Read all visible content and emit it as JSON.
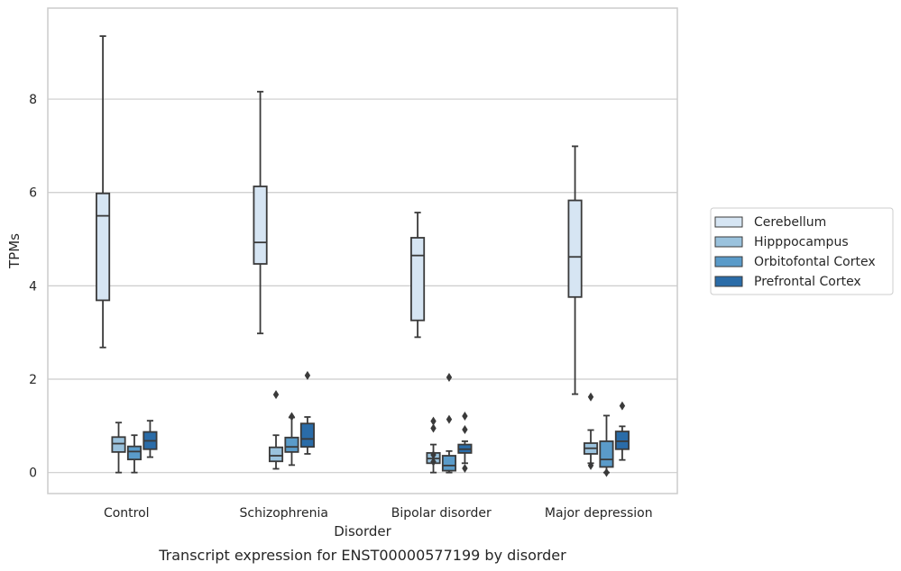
{
  "chart_data": {
    "type": "box",
    "xlabel": "Disorder",
    "ylabel": "TPMs",
    "caption": "Transcript expression for ENST00000577199 by disorder",
    "ylim": [
      -0.45,
      9.95
    ],
    "yticks": [
      0,
      2,
      4,
      6,
      8
    ],
    "grid": "y",
    "legend_position": "right",
    "categories": [
      "Control",
      "Schizophrenia",
      "Bipolar disorder",
      "Major depression"
    ],
    "series": [
      {
        "name": "Cerebellum",
        "color": "#d6e5f3",
        "boxes": [
          {
            "whisker_low": 2.68,
            "q1": 3.69,
            "median": 5.5,
            "q3": 5.98,
            "whisker_high": 9.35,
            "outliers": []
          },
          {
            "whisker_low": 2.98,
            "q1": 4.47,
            "median": 4.93,
            "q3": 6.13,
            "whisker_high": 8.16,
            "outliers": []
          },
          {
            "whisker_low": 2.9,
            "q1": 3.26,
            "median": 4.65,
            "q3": 5.03,
            "whisker_high": 5.57,
            "outliers": []
          },
          {
            "whisker_low": 1.68,
            "q1": 3.76,
            "median": 4.62,
            "q3": 5.83,
            "whisker_high": 6.99,
            "outliers": []
          }
        ]
      },
      {
        "name": "Hipppocampus",
        "color": "#9ac2dd",
        "boxes": [
          {
            "whisker_low": 0.0,
            "q1": 0.44,
            "median": 0.62,
            "q3": 0.76,
            "whisker_high": 1.07,
            "outliers": []
          },
          {
            "whisker_low": 0.08,
            "q1": 0.24,
            "median": 0.36,
            "q3": 0.54,
            "whisker_high": 0.8,
            "outliers": [
              1.67
            ]
          },
          {
            "whisker_low": 0.0,
            "q1": 0.2,
            "median": 0.3,
            "q3": 0.42,
            "whisker_high": 0.6,
            "outliers": [
              0.38,
              0.23,
              1.1,
              0.95
            ]
          },
          {
            "whisker_low": 0.2,
            "q1": 0.4,
            "median": 0.52,
            "q3": 0.63,
            "whisker_high": 0.91,
            "outliers": [
              0.15,
              1.62
            ]
          }
        ]
      },
      {
        "name": "Orbitofontal Cortex",
        "color": "#5a9bc9",
        "boxes": [
          {
            "whisker_low": 0.0,
            "q1": 0.28,
            "median": 0.45,
            "q3": 0.56,
            "whisker_high": 0.8,
            "outliers": []
          },
          {
            "whisker_low": 0.16,
            "q1": 0.44,
            "median": 0.55,
            "q3": 0.75,
            "whisker_high": 1.18,
            "outliers": [
              1.2
            ]
          },
          {
            "whisker_low": 0.0,
            "q1": 0.04,
            "median": 0.15,
            "q3": 0.36,
            "whisker_high": 0.46,
            "outliers": [
              1.14,
              2.04
            ]
          },
          {
            "whisker_low": 0.0,
            "q1": 0.12,
            "median": 0.28,
            "q3": 0.67,
            "whisker_high": 1.22,
            "outliers": [
              0.0
            ]
          }
        ]
      },
      {
        "name": "Prefrontal Cortex",
        "color": "#2a6ca8",
        "boxes": [
          {
            "whisker_low": 0.33,
            "q1": 0.5,
            "median": 0.68,
            "q3": 0.87,
            "whisker_high": 1.11,
            "outliers": []
          },
          {
            "whisker_low": 0.4,
            "q1": 0.55,
            "median": 0.72,
            "q3": 1.05,
            "whisker_high": 1.19,
            "outliers": [
              2.08
            ]
          },
          {
            "whisker_low": 0.2,
            "q1": 0.42,
            "median": 0.5,
            "q3": 0.6,
            "whisker_high": 0.67,
            "outliers": [
              0.09,
              0.92,
              1.21
            ]
          },
          {
            "whisker_low": 0.27,
            "q1": 0.5,
            "median": 0.67,
            "q3": 0.88,
            "whisker_high": 0.99,
            "outliers": [
              1.43
            ]
          }
        ]
      }
    ]
  }
}
